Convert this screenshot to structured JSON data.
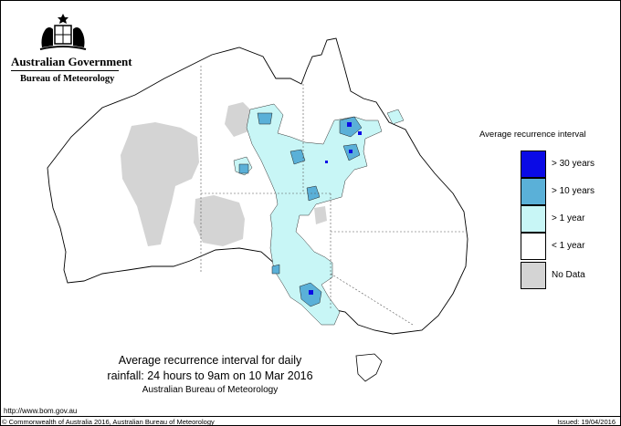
{
  "header": {
    "government": "Australian Government",
    "bureau": "Bureau of Meteorology"
  },
  "legend": {
    "title": "Average recurrence interval",
    "items": [
      {
        "label": "> 30 years",
        "color": "#0a0ae6"
      },
      {
        "label": "> 10 years",
        "color": "#5ab0d8"
      },
      {
        "label": "> 1 year",
        "color": "#c8f6f6"
      },
      {
        "label": "< 1 year",
        "color": "#ffffff"
      },
      {
        "label": "No Data",
        "color": "#d4d4d4"
      }
    ]
  },
  "caption": {
    "line1": "Average recurrence interval for daily",
    "line2": "rainfall: 24 hours to 9am on 10 Mar 2016",
    "line3": "Australian Bureau of Meteorology"
  },
  "footer": {
    "url": "http://www.bom.gov.au",
    "copyright": "© Commonwealth of Australia 2016, Australian Bureau of Meteorology",
    "issued": "Issued: 19/04/2016"
  },
  "colors": {
    "ari_30": "#0a0ae6",
    "ari_10": "#5ab0d8",
    "ari_1": "#c8f6f6",
    "no_data": "#d4d4d4"
  }
}
